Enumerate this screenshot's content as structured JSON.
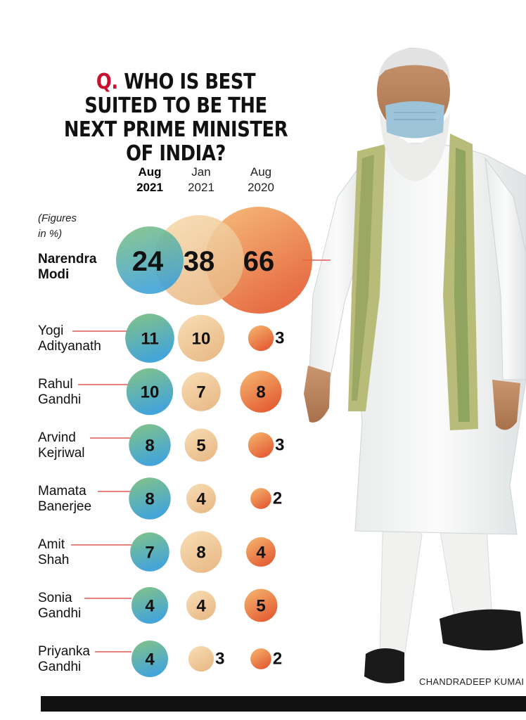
{
  "title": {
    "prefix": "Q.",
    "text": "WHO IS BEST SUITED TO BE THE NEXT PRIME MINISTER OF INDIA?"
  },
  "note": {
    "line1": "(Figures",
    "line2": "in %)"
  },
  "columns": [
    {
      "month": "Aug",
      "year": "2021"
    },
    {
      "month": "Jan",
      "year": "2021"
    },
    {
      "month": "Aug",
      "year": "2020"
    }
  ],
  "leader": {
    "line1": "Narendra",
    "line2": "Modi"
  },
  "people": [
    {
      "line1": "Yogi",
      "line2": "Adityanath"
    },
    {
      "line1": "Rahul",
      "line2": "Gandhi"
    },
    {
      "line1": "Arvind",
      "line2": "Kejriwal"
    },
    {
      "line1": "Mamata",
      "line2": "Banerjee"
    },
    {
      "line1": "Amit",
      "line2": "Shah"
    },
    {
      "line1": "Sonia",
      "line2": "Gandhi"
    },
    {
      "line1": "Priyanka",
      "line2": "Gandhi"
    }
  ],
  "credit": "CHANDRADEEP KUMAI",
  "colors": {
    "title_accent": "#c8102e",
    "aug2021": [
      "#7dc07f",
      "#3aa0d6"
    ],
    "jan2021": [
      "#f7dcb0",
      "#e9b884"
    ],
    "aug2020": [
      "#f5b56a",
      "#e3572a"
    ],
    "connector": "#e05a55"
  },
  "icons": {
    "photo": "narendra-modi-photo"
  },
  "chart_data": {
    "type": "bubble",
    "unit": "%",
    "series_headers": [
      "Aug 2021",
      "Jan 2021",
      "Aug 2020"
    ],
    "rows": [
      {
        "name": "Narendra Modi",
        "values": [
          24,
          38,
          66
        ]
      },
      {
        "name": "Yogi Adityanath",
        "values": [
          11,
          10,
          3
        ]
      },
      {
        "name": "Rahul Gandhi",
        "values": [
          10,
          7,
          8
        ]
      },
      {
        "name": "Arvind Kejriwal",
        "values": [
          8,
          5,
          3
        ]
      },
      {
        "name": "Mamata Banerjee",
        "values": [
          8,
          4,
          2
        ]
      },
      {
        "name": "Amit Shah",
        "values": [
          7,
          8,
          4
        ]
      },
      {
        "name": "Sonia Gandhi",
        "values": [
          4,
          4,
          5
        ]
      },
      {
        "name": "Priyanka Gandhi",
        "values": [
          4,
          3,
          2
        ]
      }
    ]
  }
}
